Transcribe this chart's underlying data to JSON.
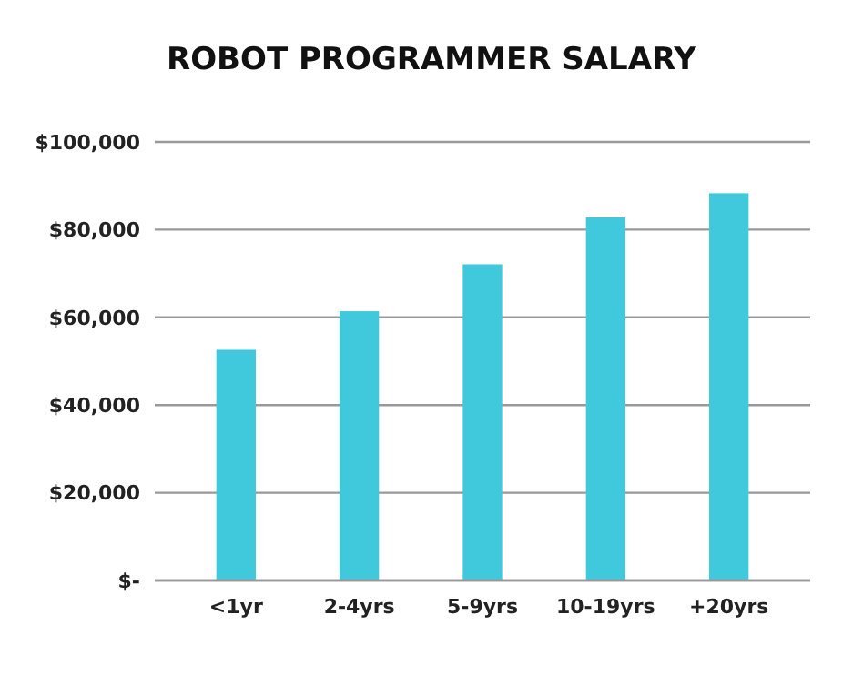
{
  "chart_data": {
    "type": "bar",
    "title": "ROBOT PROGRAMMER SALARY",
    "categories": [
      "<1yr",
      "2-4yrs",
      "5-9yrs",
      "10-19yrs",
      "+20yrs"
    ],
    "values": [
      52600,
      61400,
      72100,
      82800,
      88300
    ],
    "color": "#40c8dc",
    "ylim": [
      0,
      100000
    ],
    "yticks": [
      {
        "value": 0,
        "label": "$-"
      },
      {
        "value": 20000,
        "label": "$20,000"
      },
      {
        "value": 40000,
        "label": "$40,000"
      },
      {
        "value": 60000,
        "label": "$60,000"
      },
      {
        "value": 80000,
        "label": "$80,000"
      },
      {
        "value": 100000,
        "label": "$100,000"
      }
    ],
    "grid": "y"
  }
}
